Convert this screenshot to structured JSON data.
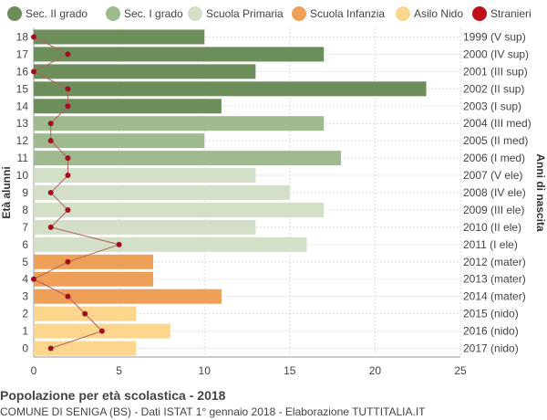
{
  "chart_data": {
    "type": "bar",
    "orientation": "horizontal",
    "title": "Popolazione per età scolastica - 2018",
    "subtitle": "COMUNE DI SENIGA (BS) - Dati ISTAT 1° gennaio 2018 - Elaborazione TUTTITALIA.IT",
    "ylabel_left": "Età alunni",
    "ylabel_right": "Anni di nascita",
    "xlim": [
      0,
      25
    ],
    "xticks": [
      "0",
      "5",
      "10",
      "15",
      "20",
      "25"
    ],
    "grid": true,
    "legend_position": "top",
    "legend": [
      {
        "name": "Sec. II grado",
        "color": "#6b8e5a",
        "shape": "circle"
      },
      {
        "name": "Sec. I grado",
        "color": "#9fba8e",
        "shape": "circle"
      },
      {
        "name": "Scuola Primaria",
        "color": "#d3dfc6",
        "shape": "circle"
      },
      {
        "name": "Scuola Infanzia",
        "color": "#ee9f58",
        "shape": "circle"
      },
      {
        "name": "Asilo Nido",
        "color": "#fdd68d",
        "shape": "circle"
      },
      {
        "name": "Stranieri",
        "color": "#c0101a",
        "shape": "circle"
      }
    ],
    "rows": [
      {
        "age": "18",
        "birth": "1999 (V sup)",
        "value": 10,
        "stranieri": 0,
        "group": 0
      },
      {
        "age": "17",
        "birth": "2000 (IV sup)",
        "value": 17,
        "stranieri": 2,
        "group": 0
      },
      {
        "age": "16",
        "birth": "2001 (III sup)",
        "value": 13,
        "stranieri": 0,
        "group": 0
      },
      {
        "age": "15",
        "birth": "2002 (II sup)",
        "value": 23,
        "stranieri": 2,
        "group": 0
      },
      {
        "age": "14",
        "birth": "2003 (I sup)",
        "value": 11,
        "stranieri": 2,
        "group": 0
      },
      {
        "age": "13",
        "birth": "2004 (III med)",
        "value": 17,
        "stranieri": 1,
        "group": 1
      },
      {
        "age": "12",
        "birth": "2005 (II med)",
        "value": 10,
        "stranieri": 1,
        "group": 1
      },
      {
        "age": "11",
        "birth": "2006 (I med)",
        "value": 18,
        "stranieri": 2,
        "group": 1
      },
      {
        "age": "10",
        "birth": "2007 (V ele)",
        "value": 13,
        "stranieri": 2,
        "group": 2
      },
      {
        "age": "9",
        "birth": "2008 (IV ele)",
        "value": 15,
        "stranieri": 1,
        "group": 2
      },
      {
        "age": "8",
        "birth": "2009 (III ele)",
        "value": 17,
        "stranieri": 2,
        "group": 2
      },
      {
        "age": "7",
        "birth": "2010 (II ele)",
        "value": 13,
        "stranieri": 1,
        "group": 2
      },
      {
        "age": "6",
        "birth": "2011 (I ele)",
        "value": 16,
        "stranieri": 5,
        "group": 2
      },
      {
        "age": "5",
        "birth": "2012 (mater)",
        "value": 7,
        "stranieri": 2,
        "group": 3
      },
      {
        "age": "4",
        "birth": "2013 (mater)",
        "value": 7,
        "stranieri": 0,
        "group": 3
      },
      {
        "age": "3",
        "birth": "2014 (mater)",
        "value": 11,
        "stranieri": 2,
        "group": 3
      },
      {
        "age": "2",
        "birth": "2015 (nido)",
        "value": 6,
        "stranieri": 3,
        "group": 4
      },
      {
        "age": "1",
        "birth": "2016 (nido)",
        "value": 8,
        "stranieri": 4,
        "group": 4
      },
      {
        "age": "0",
        "birth": "2017 (nido)",
        "value": 6,
        "stranieri": 1,
        "group": 4
      }
    ],
    "colors": {
      "grid": "#dddddd",
      "axis": "#999999",
      "stranieri_line": "#b06060",
      "stranieri_dot": "#a01020"
    }
  }
}
